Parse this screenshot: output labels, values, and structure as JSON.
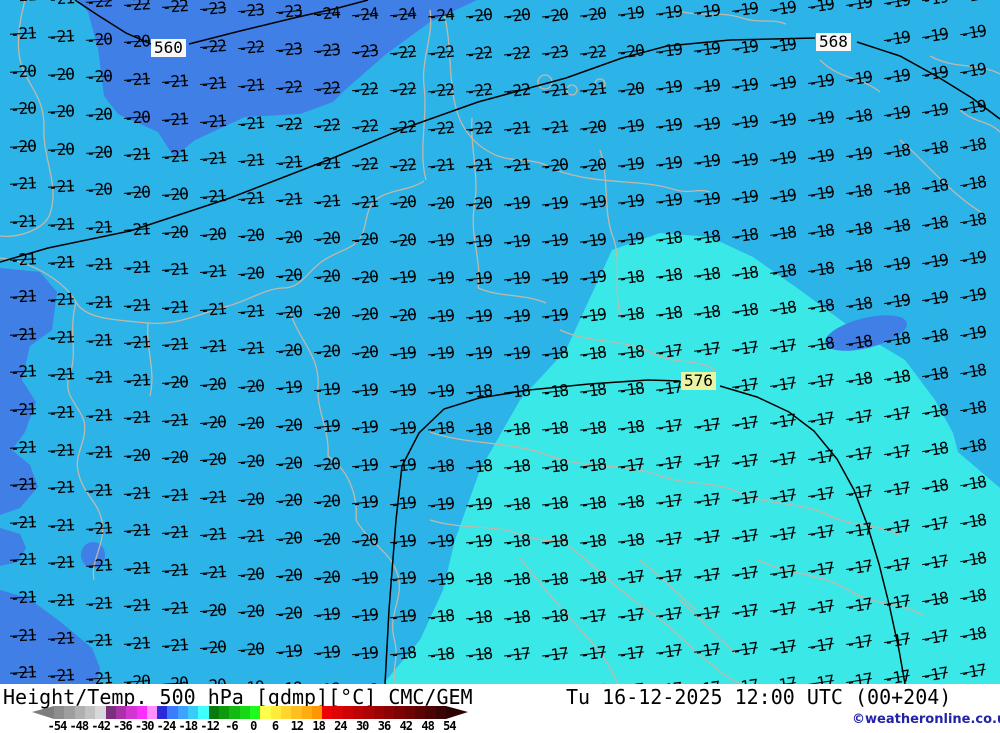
{
  "bottombar": {
    "title": "Height/Temp. 500 hPa [gdmp][°C] CMC/GEM",
    "datetime": "Tu 16-12-2025 12:00 UTC (00+204)",
    "copyright": "©weatheronline.co.uk",
    "copyright_color": "#2323a8",
    "scale": {
      "labels": [
        "-54",
        "-48",
        "-42",
        "-36",
        "-30",
        "-24",
        "-18",
        "-12",
        "-6",
        "0",
        "6",
        "12",
        "18",
        "24",
        "30",
        "36",
        "42",
        "48",
        "54"
      ],
      "colors": [
        "#8e8e8e",
        "#9e9e9e",
        "#b0b0b0",
        "#c2c2c2",
        "#d8d8d8",
        "#7c2f7c",
        "#a832a8",
        "#d434d4",
        "#fa30fa",
        "#ff8eff",
        "#2a2ad8",
        "#3c7cfc",
        "#3fa2ff",
        "#38ccf8",
        "#42ffff",
        "#0a7a0a",
        "#0e9a0e",
        "#12ba12",
        "#16d816",
        "#1efc1e",
        "#ffff4c",
        "#ffeb3c",
        "#ffd52e",
        "#ffbf20",
        "#ffab12",
        "#ff9704",
        "#ec0404",
        "#dc0404",
        "#cc0404",
        "#bc0404",
        "#ac0404",
        "#9c0404",
        "#8c0404",
        "#7c0404",
        "#6c0404",
        "#5c0404",
        "#4a0404",
        "#3a0404"
      ],
      "left_arrow_color": "#7e7e7e",
      "right_arrow_color": "#2e0202"
    }
  },
  "map": {
    "colors": {
      "base": "#2cb3e8",
      "band": "#3f7fe6",
      "turquoise": "#3ae8e8",
      "coast": "#c2b8aa",
      "contour": "#000000",
      "numbers": "#000000"
    },
    "contour_labels": [
      {
        "text": "560",
        "bg": "#f8f8f8"
      },
      {
        "text": "568",
        "bg": "#f8f8f8"
      },
      {
        "text": "576",
        "bg": "#e9f4a2"
      }
    ],
    "grid_rows": [
      "-21 -21 -22 -22 -22 -23 -23 -23 -24 -24 -24 -24 -20 -20 -20 -20 -19 -19 -19 -19 -19 -19 -19 -19 -19 -19",
      "-21 -21 -20 -20 . -22 -22 -23 -23 -23 -22 -22 -22 -22 -23 -22 -20 -19 -19 -19 -19 . . -19 -19 -19",
      "-20 -20 -20 -21 -21 -21 -21 -22 -22 -22 -22 -22 -22 -22 -21 -21 -20 -19 -19 -19 -19 -19 -19 -19 -19 -19",
      "-20 -20 -20 -20 -21 -21 -21 -22 -22 -22 -22 -22 -22 -21 -21 -20 -19 -19 -19 -19 -19 -19 -18 -19 -19 -19",
      "-20 -20 -20 -21 -21 -21 -21 -21 -21 -22 -22 -21 -21 -21 -20 -20 -19 -19 -19 -19 -19 -19 -19 -18 -18 -18",
      "-21 -21 -20 -20 -20 -21 -21 -21 -21 -21 -20 -20 -20 -19 -19 -19 -19 -19 -19 -19 -19 -19 -18 -18 -18 -18",
      "-21 -21 -21 -21 -20 -20 -20 -20 -20 -20 -20 -19 -19 -19 -19 -19 -19 -18 -18 -18 -18 -18 -18 -18 -18 -18",
      "-21 -21 -21 -21 -21 -21 -20 -20 -20 -20 -19 -19 -19 -19 -19 -19 -18 -18 -18 -18 -18 -18 -18 -19 -19 -19",
      "-21 -21 -21 -21 -21 -21 -21 -20 -20 -20 -20 -19 -19 -19 -19 -19 -18 -18 -18 -18 -18 -18 -18 -19 -19 -19",
      "-21 -21 -21 -21 -21 -21 -21 -20 -20 -20 -19 -19 -19 -19 -18 -18 -18 -17 -17 -17 -17 -18 -18 -18 -18 -19",
      "-21 -21 -21 -21 -20 -20 -20 -19 -19 -19 -19 -19 -18 -18 -18 -18 -18 -17 . -17 -17 -17 -18 -18 -18 -18",
      "-21 -21 -21 -21 -21 -20 -20 -20 -19 -19 -19 -18 -18 -18 -18 -18 -18 -17 -17 -17 -17 -17 -17 -17 -18 -18",
      "-21 -21 -21 -20 -20 -20 -20 -20 -20 -19 -19 -18 -18 -18 -18 -18 -17 -17 -17 -17 -17 -17 -17 -17 -18 -18",
      "-21 -21 -21 -21 -21 -21 -20 -20 -20 -19 -19 -19 -19 -18 -18 -18 -18 -17 -17 -17 -17 -17 -17 -17 -18 -18",
      "-21 -21 -21 -21 -21 -21 -21 -20 -20 -20 -19 -19 -19 -18 -18 -18 -18 -17 -17 -17 -17 -17 -17 -17 -17 -18",
      "-21 -21 -21 -21 -21 -21 -20 -20 -20 -19 -19 -19 -18 -18 -18 -18 -17 -17 -17 -17 -17 -17 -17 -17 -17 -18",
      "-21 -21 -21 -21 -21 -20 -20 -20 -19 -19 -19 -18 -18 -18 -18 -17 -17 -17 -17 -17 -17 -17 -17 -17 -18 -18",
      "-21 -21 -21 -21 -21 -20 -20 -19 -19 -19 -18 -18 -18 -17 -17 -17 -17 -17 -17 -17 -17 -17 -17 -17 -17 -18",
      "-21 -21 -21 -20 -20 -20 -19 -19 -18 -18 -18 -17 -17 -17 -17 -17 -17 -17 -17 -17 -17 -17 -17 -17 -17 -17"
    ]
  }
}
